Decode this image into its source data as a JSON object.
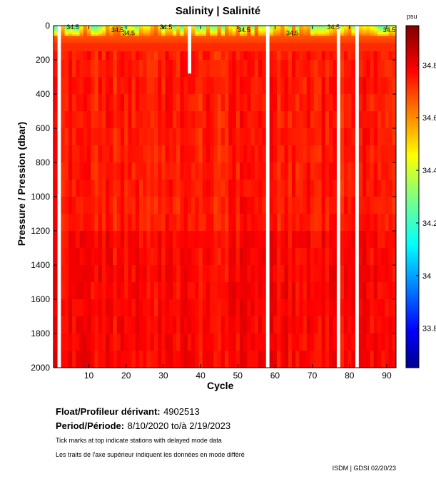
{
  "chart_data": {
    "type": "heatmap",
    "title": "Salinity | Salinité",
    "xlabel": "Cycle",
    "ylabel": "Pressure / Pression (dbar)",
    "xlim": [
      1,
      92
    ],
    "ylim": [
      2000,
      0
    ],
    "x_ticks": [
      10,
      20,
      30,
      40,
      50,
      60,
      70,
      80,
      90
    ],
    "y_ticks": [
      0,
      200,
      400,
      600,
      800,
      1000,
      1200,
      1400,
      1600,
      1800,
      2000
    ],
    "colorbar": {
      "unit": "psu",
      "range": [
        33.65,
        34.95
      ],
      "ticks": [
        33.8,
        34,
        34.2,
        34.4,
        34.6,
        34.8
      ],
      "tick_labels": [
        "33.8",
        "34",
        "34.2",
        "34.4",
        "34.6",
        "34.8"
      ],
      "colormap": "jet"
    },
    "contour_level": 34.5,
    "contour_labels": [
      "34.5",
      "34.5",
      "34.5",
      "34.5",
      "34.5",
      "34.5",
      "34.5",
      "34.5"
    ],
    "missing_cycles": [
      2,
      58,
      77,
      82
    ],
    "partial_missing": [
      {
        "cycle": 37,
        "from_pressure": 0,
        "to_pressure": 280
      }
    ],
    "typical_values": {
      "surface_range": [
        34.2,
        34.6
      ],
      "deep_value": 34.75
    },
    "grid": false
  },
  "info": {
    "float_label": "Float/Profileur dérivant:",
    "float_value": "4902513",
    "period_label": "Period/Période:",
    "period_value": "8/10/2020  to/à  2/19/2023",
    "note_en": "Tick marks at top indicate stations with delayed mode data",
    "note_fr": "Les traits de l'axe supérieur indiquent les données en mode différé"
  },
  "footer": "ISDM | GDSI  02/20/23"
}
